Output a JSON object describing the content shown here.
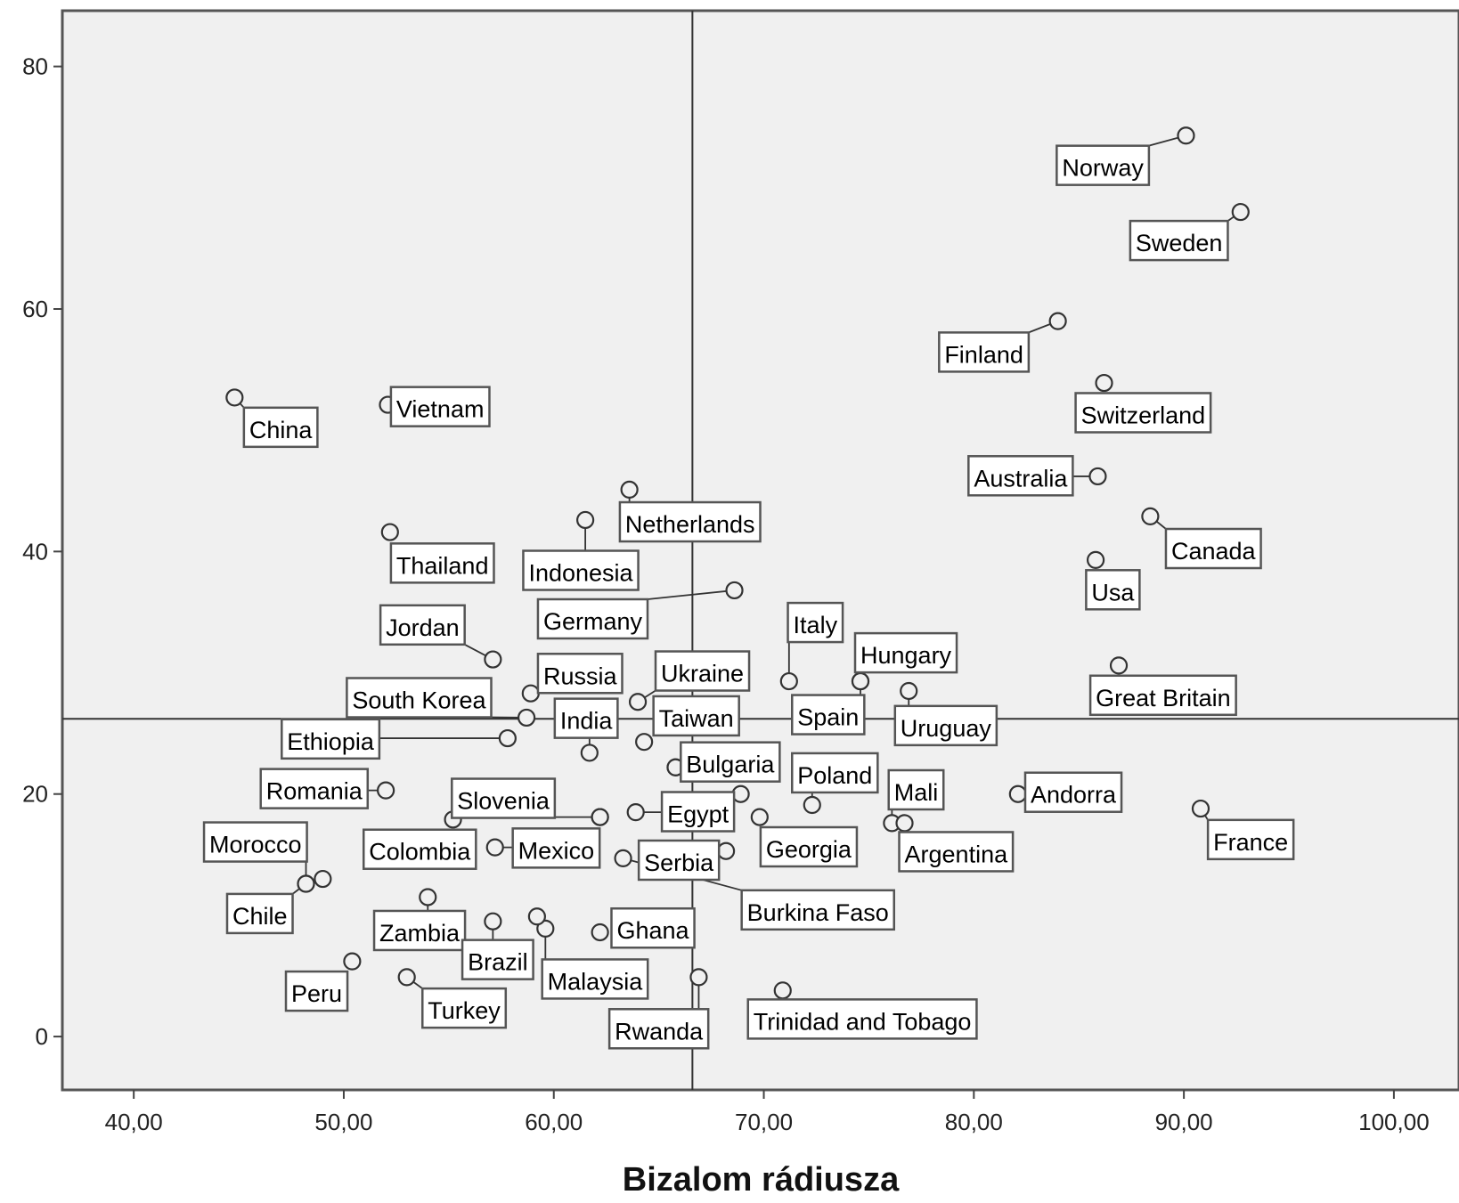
{
  "chart_data": {
    "type": "scatter",
    "title": "",
    "xlabel": "Bizalom rádiusza",
    "ylabel": "",
    "xlim": [
      36.6,
      103.1
    ],
    "ylim": [
      -4.4,
      84.6
    ],
    "xticks": [
      40,
      50,
      60,
      70,
      80,
      90,
      100
    ],
    "xtick_labels": [
      "40,00",
      "50,00",
      "60,00",
      "70,00",
      "80,00",
      "90,00",
      "100,00"
    ],
    "yticks": [
      0,
      20,
      40,
      60,
      80
    ],
    "ytick_labels": [
      "0",
      "20",
      "40",
      "60",
      "80"
    ],
    "reference_lines": {
      "x": 66.6,
      "y": 26.2
    },
    "grid": false,
    "background": "#f0f0f0",
    "points": [
      {
        "label": "Norway",
        "x": 90.1,
        "y": 74.3,
        "lx": 84.2,
        "ly": 71.7
      },
      {
        "label": "Sweden",
        "x": 92.7,
        "y": 68.0,
        "lx": 87.7,
        "ly": 65.5
      },
      {
        "label": "Finland",
        "x": 84.0,
        "y": 59.0,
        "lx": 78.6,
        "ly": 56.3
      },
      {
        "label": "Switzerland",
        "x": 86.2,
        "y": 53.9,
        "lx": 85.1,
        "ly": 51.3
      },
      {
        "label": "Australia",
        "x": 85.9,
        "y": 46.2,
        "lx": 80.0,
        "ly": 46.1
      },
      {
        "label": "Canada",
        "x": 88.4,
        "y": 42.9,
        "lx": 89.4,
        "ly": 40.1
      },
      {
        "label": "Usa",
        "x": 85.8,
        "y": 39.3,
        "lx": 85.6,
        "ly": 36.7
      },
      {
        "label": "Great Britain",
        "x": 86.9,
        "y": 30.6,
        "lx": 85.8,
        "ly": 28.0
      },
      {
        "label": "China",
        "x": 44.8,
        "y": 52.7,
        "lx": 45.5,
        "ly": 50.1
      },
      {
        "label": "Vietnam",
        "x": 52.1,
        "y": 52.1,
        "lx": 52.5,
        "ly": 51.8
      },
      {
        "label": "Thailand",
        "x": 52.2,
        "y": 41.6,
        "lx": 52.5,
        "ly": 38.9
      },
      {
        "label": "Netherlands",
        "x": 63.6,
        "y": 45.1,
        "lx": 63.4,
        "ly": 42.3
      },
      {
        "label": "Indonesia",
        "x": 61.5,
        "y": 42.6,
        "lx": 58.8,
        "ly": 38.3
      },
      {
        "label": "Germany",
        "x": 68.6,
        "y": 36.8,
        "lx": 59.5,
        "ly": 34.3
      },
      {
        "label": "Jordan",
        "x": 57.1,
        "y": 31.1,
        "lx": 52.0,
        "ly": 33.8
      },
      {
        "label": "Italy",
        "x": 71.2,
        "y": 29.3,
        "lx": 71.4,
        "ly": 34.0
      },
      {
        "label": "Hungary",
        "x": 74.6,
        "y": 29.3,
        "lx": 74.6,
        "ly": 31.5
      },
      {
        "label": "Russia",
        "x": 58.9,
        "y": 28.3,
        "lx": 59.5,
        "ly": 29.8
      },
      {
        "label": "Ukraine",
        "x": 64.0,
        "y": 27.6,
        "lx": 65.1,
        "ly": 30.0
      },
      {
        "label": "South Korea",
        "x": 58.7,
        "y": 26.3,
        "lx": 50.4,
        "ly": 27.8
      },
      {
        "label": "Spain",
        "x": 74.6,
        "y": 29.3,
        "lx": 71.6,
        "ly": 26.4
      },
      {
        "label": "Uruguay",
        "x": 76.9,
        "y": 28.5,
        "lx": 76.5,
        "ly": 25.5
      },
      {
        "label": "India",
        "x": 61.7,
        "y": 23.4,
        "lx": 60.3,
        "ly": 26.1
      },
      {
        "label": "Taiwan",
        "x": 64.3,
        "y": 24.3,
        "lx": 65.0,
        "ly": 26.3
      },
      {
        "label": "Ethiopia",
        "x": 57.8,
        "y": 24.6,
        "lx": 47.3,
        "ly": 24.4
      },
      {
        "label": "Bulgaria",
        "x": 65.8,
        "y": 22.2,
        "lx": 66.3,
        "ly": 22.5
      },
      {
        "label": "Poland",
        "x": 72.3,
        "y": 19.1,
        "lx": 71.6,
        "ly": 21.6
      },
      {
        "label": "Mali",
        "x": 76.1,
        "y": 17.6,
        "lx": 76.2,
        "ly": 20.2
      },
      {
        "label": "Andorra",
        "x": 82.1,
        "y": 20.0,
        "lx": 82.7,
        "ly": 20.0
      },
      {
        "label": "France",
        "x": 90.8,
        "y": 18.8,
        "lx": 91.4,
        "ly": 16.1
      },
      {
        "label": "Romania",
        "x": 52.0,
        "y": 20.3,
        "lx": 46.3,
        "ly": 20.3
      },
      {
        "label": "Slovenia",
        "x": 62.2,
        "y": 18.1,
        "lx": 55.4,
        "ly": 19.5
      },
      {
        "label": "Egypt",
        "x": 63.9,
        "y": 18.5,
        "lx": 65.4,
        "ly": 18.4
      },
      {
        "label": "Georgia",
        "x": 69.8,
        "y": 18.1,
        "lx": 70.1,
        "ly": 15.5
      },
      {
        "label": "Argentina",
        "x": 76.7,
        "y": 17.6,
        "lx": 76.7,
        "ly": 15.1
      },
      {
        "label": "Morocco",
        "x": 48.2,
        "y": 12.6,
        "lx": 43.6,
        "ly": 15.9
      },
      {
        "label": "Colombia",
        "x": 55.7,
        "y": 14.5,
        "lx": 51.2,
        "ly": 15.3
      },
      {
        "label": "Mexico",
        "x": 57.2,
        "y": 15.6,
        "lx": 58.3,
        "ly": 15.4
      },
      {
        "label": "Serbia",
        "x": 68.2,
        "y": 15.3,
        "lx": 64.3,
        "ly": 14.4
      },
      {
        "label": "Burkina Faso",
        "x": 63.3,
        "y": 14.7,
        "lx": 69.2,
        "ly": 10.3
      },
      {
        "label": "Chile",
        "x": 48.2,
        "y": 12.6,
        "lx": 44.7,
        "ly": 10.0
      },
      {
        "label": "Zambia",
        "x": 54.0,
        "y": 11.5,
        "lx": 51.7,
        "ly": 8.6
      },
      {
        "label": "Brazil",
        "x": 57.1,
        "y": 9.5,
        "lx": 55.9,
        "ly": 6.2
      },
      {
        "label": "Ghana",
        "x": 62.2,
        "y": 8.6,
        "lx": 63.0,
        "ly": 8.8
      },
      {
        "label": "Malaysia",
        "x": 59.6,
        "y": 8.9,
        "lx": 59.7,
        "ly": 4.6
      },
      {
        "label": "Peru",
        "x": 50.4,
        "y": 6.2,
        "lx": 47.5,
        "ly": 3.6
      },
      {
        "label": "Turkey",
        "x": 53.0,
        "y": 4.9,
        "lx": 54.0,
        "ly": 2.2
      },
      {
        "label": "Rwanda",
        "x": 66.9,
        "y": 4.9,
        "lx": 62.9,
        "ly": 0.5
      },
      {
        "label": "Trinidad and Tobago",
        "x": 70.9,
        "y": 3.8,
        "lx": 69.5,
        "ly": 1.3
      },
      {
        "label": "",
        "x": 49.0,
        "y": 13.0
      },
      {
        "label": "",
        "x": 55.2,
        "y": 17.9
      },
      {
        "label": "",
        "x": 59.2,
        "y": 9.9
      },
      {
        "label": "",
        "x": 65.8,
        "y": 22.2
      },
      {
        "label": "",
        "x": 62.2,
        "y": 18.1
      },
      {
        "label": "",
        "x": 68.9,
        "y": 20.0
      }
    ]
  }
}
